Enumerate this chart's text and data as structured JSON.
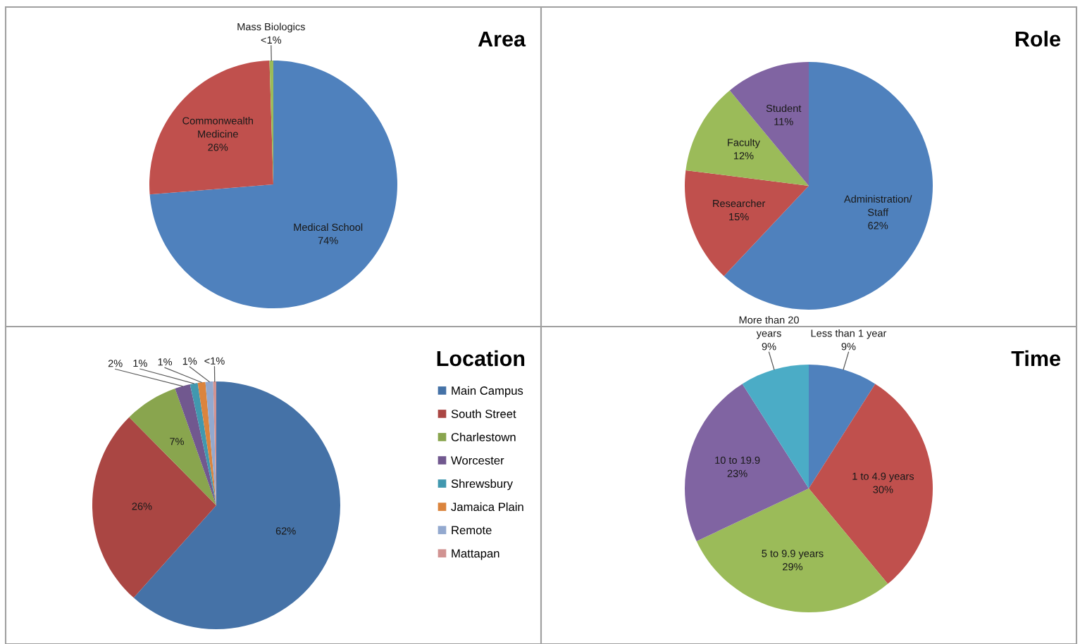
{
  "chart_data": [
    {
      "type": "pie",
      "title": "Area",
      "categories": [
        "Medical School",
        "Commonwealth Medicine",
        "Mass Biologics"
      ],
      "values": [
        73.7,
        25.8,
        0.5
      ],
      "value_labels": [
        "74%",
        "26%",
        "<1%"
      ],
      "colors": [
        "#4f81bd",
        "#c0504d",
        "#9bbb59"
      ]
    },
    {
      "type": "pie",
      "title": "Role",
      "categories": [
        "Administration/ Staff",
        "Researcher",
        "Faculty",
        "Student"
      ],
      "values": [
        62,
        15,
        12,
        11
      ],
      "value_labels": [
        "62%",
        "15%",
        "12%",
        "11%"
      ],
      "colors": [
        "#4f81bd",
        "#c0504d",
        "#9bbb59",
        "#8064a2"
      ]
    },
    {
      "type": "pie",
      "title": "Location",
      "categories": [
        "Main Campus",
        "South Street",
        "Charlestown",
        "Worcester",
        "Shrewsbury",
        "Jamaica Plain",
        "Remote",
        "Mattapan"
      ],
      "values": [
        61.6,
        26,
        7,
        2,
        1,
        1,
        1,
        0.4
      ],
      "value_labels": [
        "62%",
        "26%",
        "7%",
        "2%",
        "1%",
        "1%",
        "1%",
        "<1%"
      ],
      "colors": [
        "#4572a7",
        "#aa4643",
        "#89a54e",
        "#71588f",
        "#4198af",
        "#db843d",
        "#93a9cf",
        "#d19392"
      ],
      "legend": "right"
    },
    {
      "type": "pie",
      "title": "Time",
      "categories": [
        "Less than 1 year",
        "1 to 4.9 years",
        "5 to 9.9 years",
        "10 to 19.9",
        "More than 20 years"
      ],
      "values": [
        9,
        30,
        29,
        23,
        9
      ],
      "value_labels": [
        "9%",
        "30%",
        "29%",
        "23%",
        "9%"
      ],
      "colors": [
        "#4f81bd",
        "#c0504d",
        "#9bbb59",
        "#8064a2",
        "#4bacc6"
      ]
    }
  ]
}
